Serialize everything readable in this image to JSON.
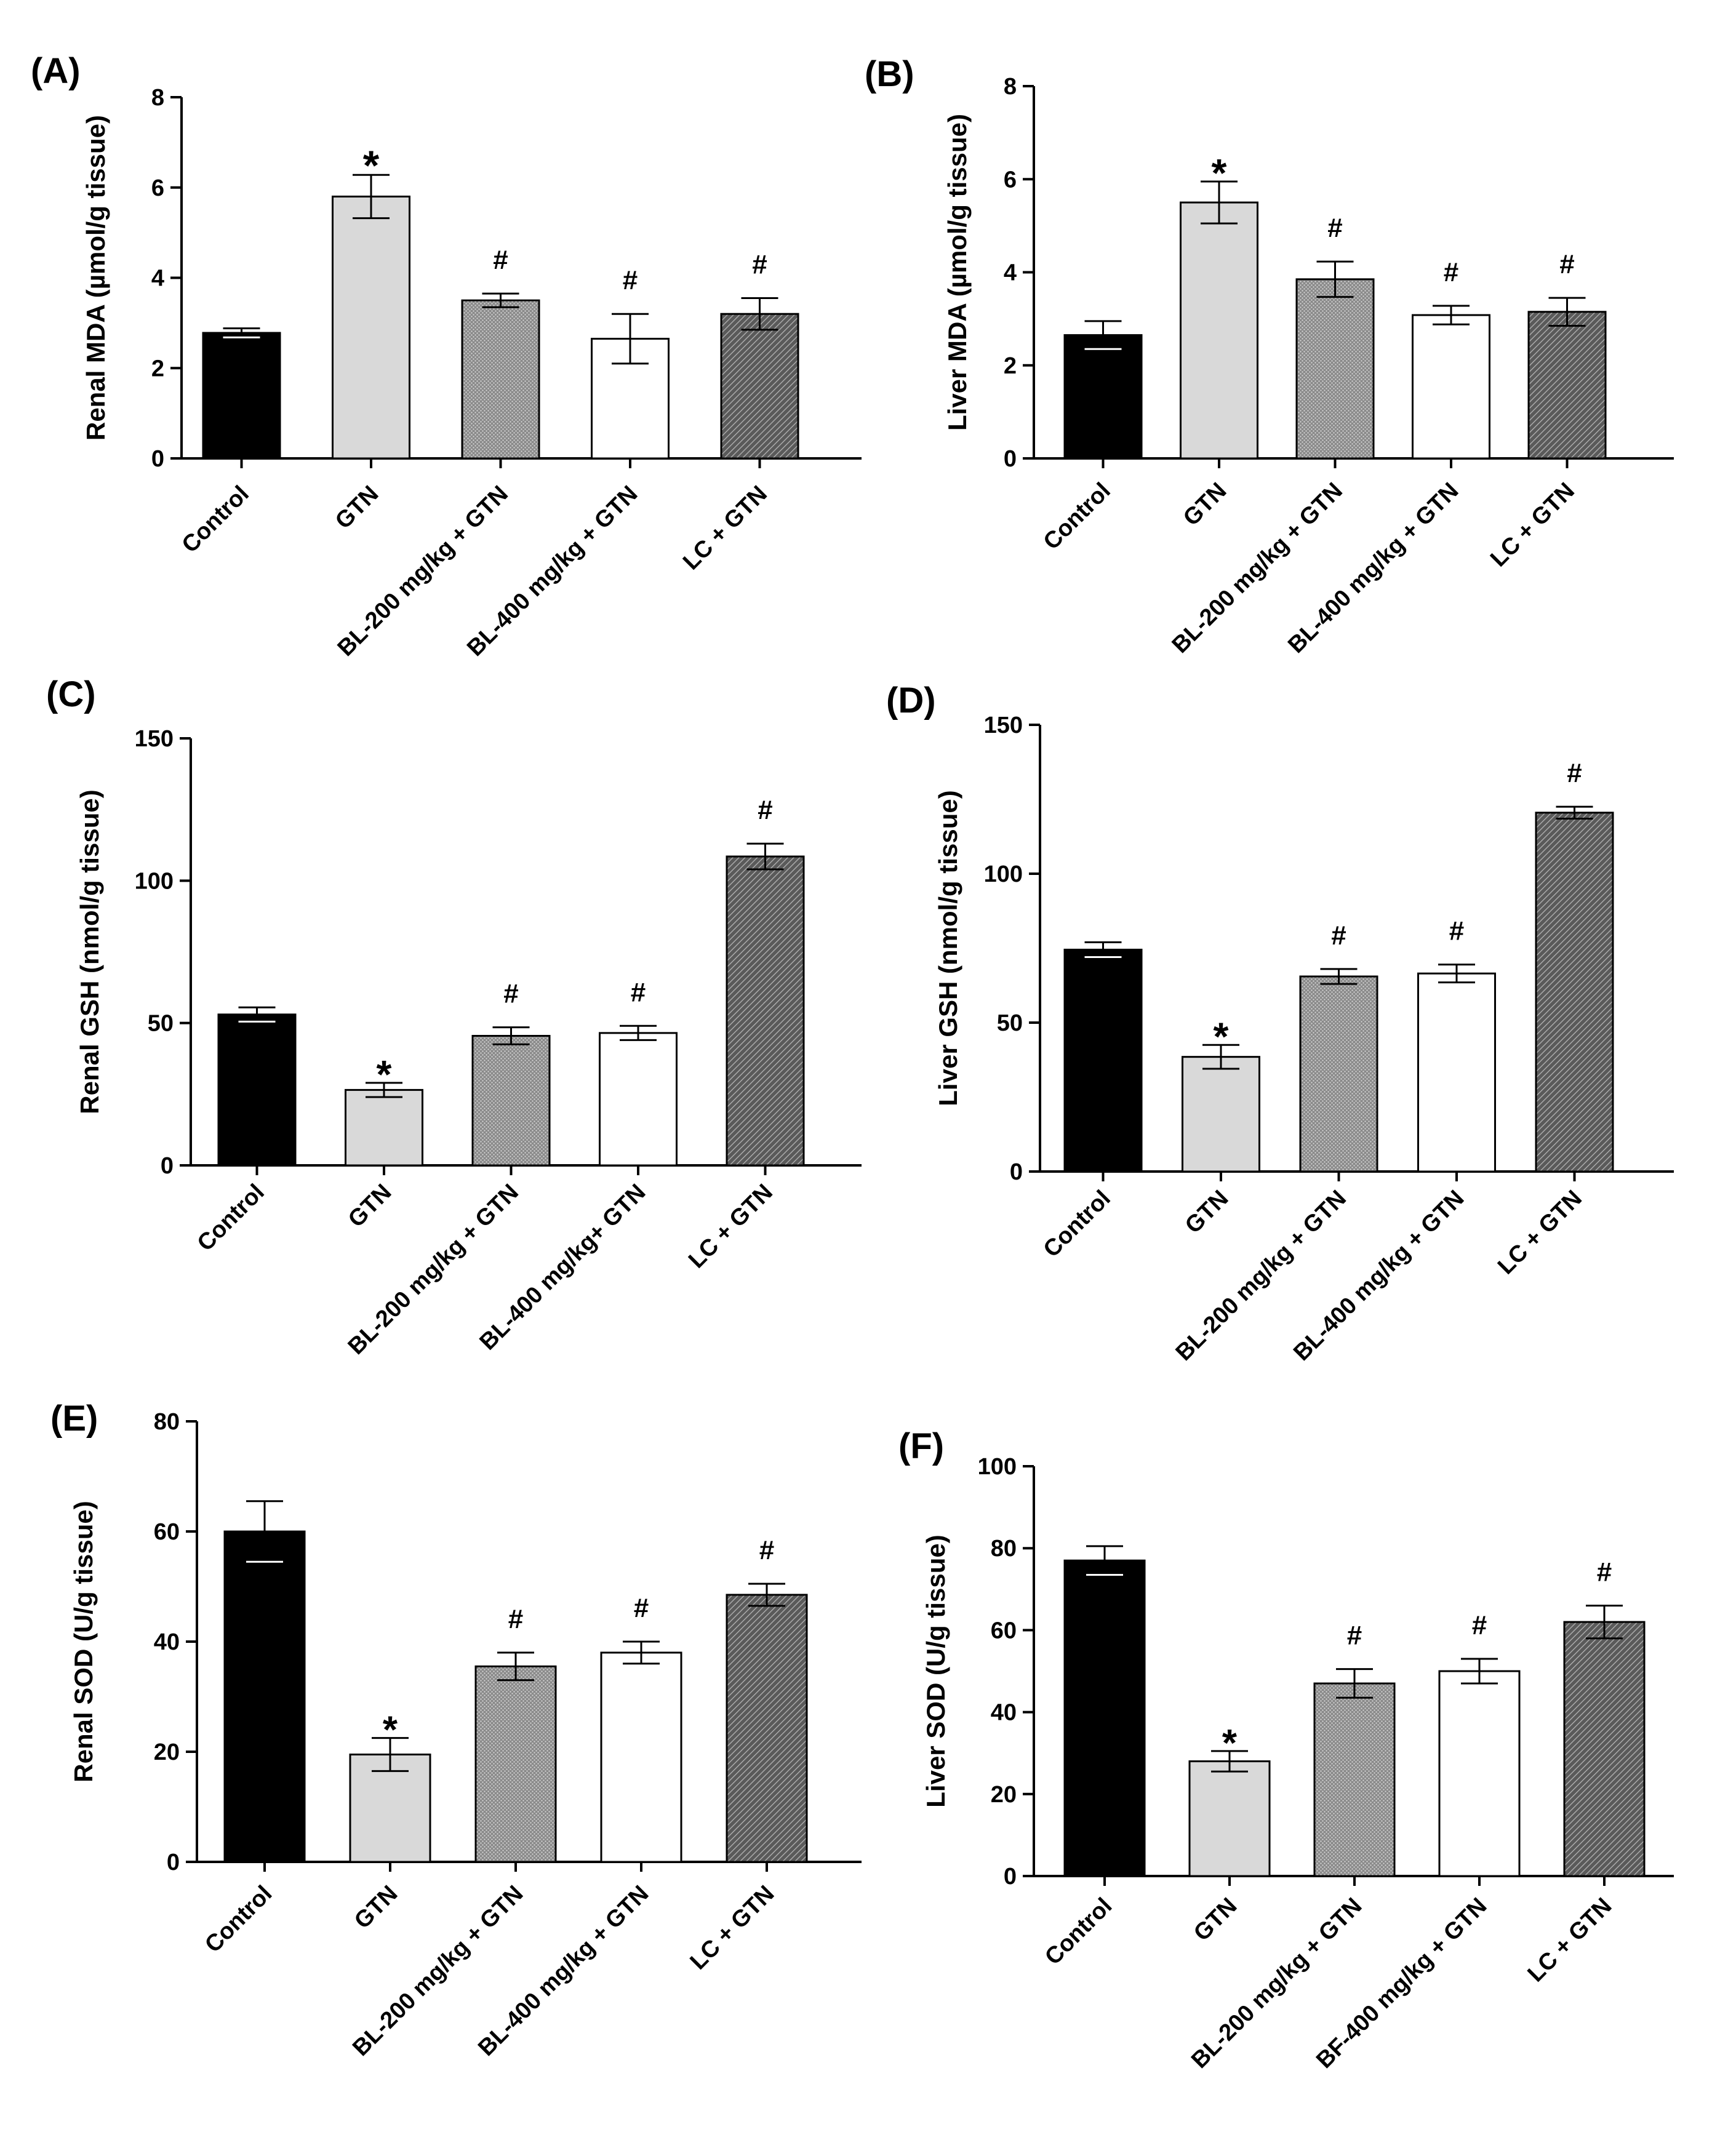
{
  "figure": {
    "patterns": {
      "solid_black": "#000000",
      "light_gray": "#d9d9d9",
      "fine_dots": "#7a7a7a",
      "white": "#ffffff",
      "hatch_dark": "#6e6e6e"
    }
  },
  "chart_data": [
    {
      "panel": "(A)",
      "type": "bar",
      "ylabel": "Renal MDA (µmol/g tissue)",
      "ylim": [
        0,
        8
      ],
      "yticks": [
        "0",
        "2",
        "4",
        "6",
        "8"
      ],
      "categories": [
        "Control",
        "GTN",
        "BL-200 mg/kg + GTN",
        "BL-400 mg/kg + GTN",
        "LC + GTN"
      ],
      "values": [
        2.78,
        5.8,
        3.5,
        2.65,
        3.2
      ],
      "errors": [
        0.1,
        0.48,
        0.15,
        0.55,
        0.35
      ],
      "significance": [
        "",
        "*",
        "#",
        "#",
        "#"
      ]
    },
    {
      "panel": "(B)",
      "type": "bar",
      "ylabel": "Liver MDA (µmol/g tissue)",
      "ylim": [
        0,
        8
      ],
      "yticks": [
        "0",
        "2",
        "4",
        "6",
        "8"
      ],
      "categories": [
        "Control",
        "GTN",
        "BL-200 mg/kg + GTN",
        "BL-400 mg/kg + GTN",
        "LC + GTN"
      ],
      "values": [
        2.65,
        5.5,
        3.85,
        3.08,
        3.15
      ],
      "errors": [
        0.3,
        0.45,
        0.38,
        0.2,
        0.3
      ],
      "significance": [
        "",
        "*",
        "#",
        "#",
        "#"
      ]
    },
    {
      "panel": "(C)",
      "type": "bar",
      "ylabel": "Renal GSH (nmol/g tissue)",
      "ylim": [
        0,
        150
      ],
      "yticks": [
        "0",
        "50",
        "100",
        "150"
      ],
      "categories": [
        "Control",
        "GTN",
        "BL-200 mg/kg + GTN",
        "BL-400 mg/kg+ GTN",
        "LC + GTN"
      ],
      "values": [
        53,
        26.5,
        45.5,
        46.5,
        108.5
      ],
      "errors": [
        2.5,
        2.5,
        3.0,
        2.5,
        4.5
      ],
      "significance": [
        "",
        "*",
        "#",
        "#",
        "#"
      ]
    },
    {
      "panel": "(D)",
      "type": "bar",
      "ylabel": "Liver GSH (nmol/g tissue)",
      "ylim": [
        0,
        150
      ],
      "yticks": [
        "0",
        "50",
        "100",
        "150"
      ],
      "categories": [
        "Control",
        "GTN",
        "BL-200 mg/kg + GTN",
        "BL-400 mg/kg + GTN",
        "LC + GTN"
      ],
      "values": [
        74.5,
        38.5,
        65.5,
        66.5,
        120.5
      ],
      "errors": [
        2.5,
        4.0,
        2.5,
        3.0,
        2.0
      ],
      "significance": [
        "",
        "*",
        "#",
        "#",
        "#"
      ]
    },
    {
      "panel": "(E)",
      "type": "bar",
      "ylabel": "Renal SOD (U/g tissue)",
      "ylim": [
        0,
        80
      ],
      "yticks": [
        "0",
        "20",
        "40",
        "60",
        "80"
      ],
      "categories": [
        "Control",
        "GTN",
        "BL-200 mg/kg + GTN",
        "BL-400 mg/kg + GTN",
        "LC + GTN"
      ],
      "values": [
        60,
        19.5,
        35.5,
        38,
        48.5
      ],
      "errors": [
        5.5,
        3.0,
        2.5,
        2.0,
        2.0
      ],
      "significance": [
        "",
        "*",
        "#",
        "#",
        "#"
      ]
    },
    {
      "panel": "(F)",
      "type": "bar",
      "ylabel": "Liver SOD (U/g tissue)",
      "ylim": [
        0,
        100
      ],
      "yticks": [
        "0",
        "20",
        "40",
        "60",
        "80",
        "100"
      ],
      "categories": [
        "Control",
        "GTN",
        "BL-200 mg/kg + GTN",
        "BF-400 mg/kg + GTN",
        "LC + GTN"
      ],
      "values": [
        77,
        28,
        47,
        50,
        62
      ],
      "errors": [
        3.5,
        2.5,
        3.5,
        3.0,
        4.0
      ],
      "significance": [
        "",
        "*",
        "#",
        "#",
        "#"
      ]
    }
  ]
}
